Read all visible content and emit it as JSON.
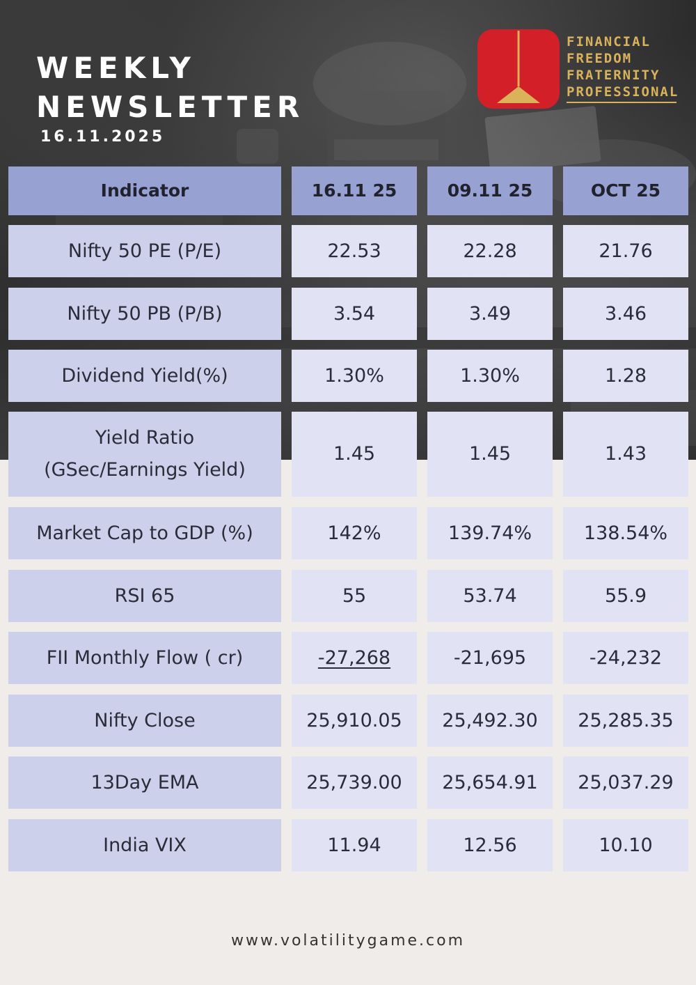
{
  "header": {
    "title_line1": "WEEKLY",
    "title_line2": "NEWSLETTER",
    "date": "16.11.2025"
  },
  "brand": {
    "line1": "FINANCIAL",
    "line2": "FREEDOM",
    "line3": "FRATERNITY",
    "line4": "PROFESSIONAL",
    "logo_color": "#d21f28",
    "text_color": "#d9b35a"
  },
  "table": {
    "columns": [
      "Indicator",
      "16.11 25",
      "09.11 25",
      "OCT 25"
    ],
    "rows": [
      {
        "label": "Nifty 50 PE (P/E)",
        "values": [
          "22.53",
          "22.28",
          "21.76"
        ]
      },
      {
        "label": "Nifty 50 PB (P/B)",
        "values": [
          "3.54",
          "3.49",
          "3.46"
        ]
      },
      {
        "label": "Dividend Yield(%)",
        "values": [
          "1.30%",
          "1.30%",
          "1.28"
        ]
      },
      {
        "label_line1": "Yield Ratio",
        "label_line2": "(GSec/Earnings Yield)",
        "values": [
          "1.45",
          "1.45",
          "1.43"
        ]
      },
      {
        "label": "Market Cap to GDP (%)",
        "values": [
          "142%",
          "139.74%",
          "138.54%"
        ]
      },
      {
        "label": "RSI 65",
        "values": [
          "55",
          "53.74",
          "55.9"
        ]
      },
      {
        "label": "FII Monthly Flow ( cr)",
        "values": [
          "-27,268",
          "-21,695",
          "-24,232"
        ]
      },
      {
        "label": "Nifty Close",
        "values": [
          "25,910.05",
          "25,492.30",
          "25,285.35"
        ]
      },
      {
        "label": "13Day EMA",
        "values": [
          "25,739.00",
          "25,654.91",
          "25,037.29"
        ]
      },
      {
        "label": "India VIX",
        "values": [
          "11.94",
          "12.56",
          "10.10"
        ]
      }
    ],
    "header_color": "#97a2d3",
    "label_color": "#cdd0ea",
    "value_color": "#e1e3f4"
  },
  "footer": {
    "website": "www.volatilitygame.com"
  }
}
